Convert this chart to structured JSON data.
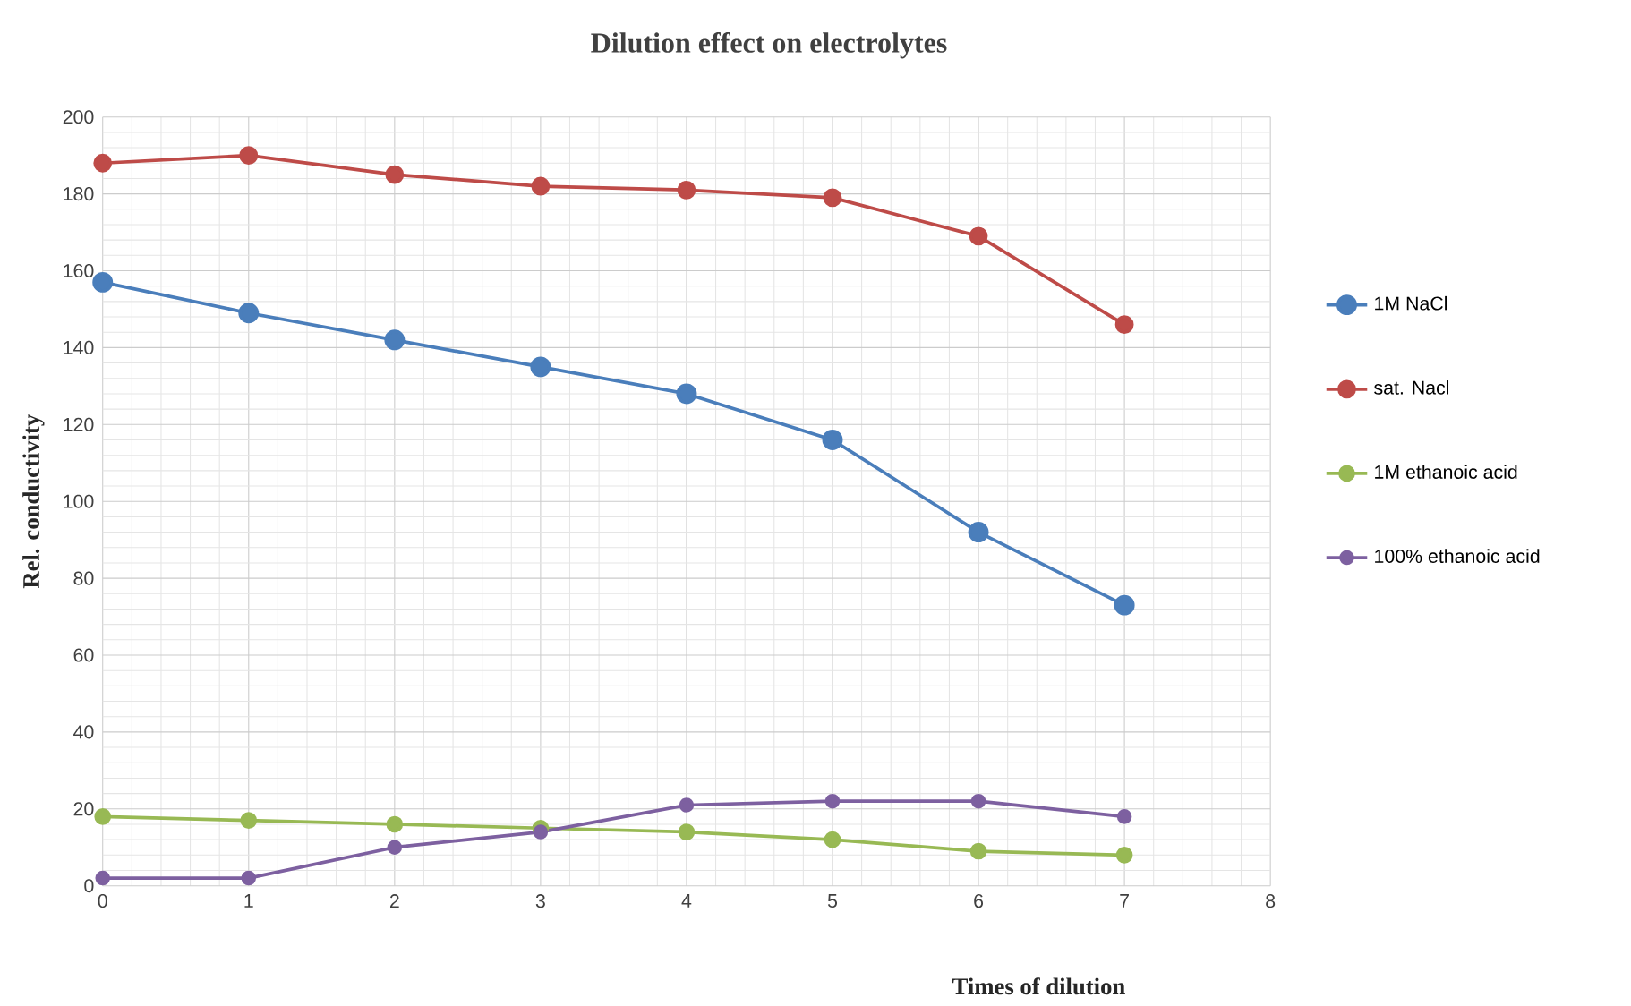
{
  "chart_data": {
    "type": "line",
    "title": "Dilution effect on electrolytes",
    "xlabel": "Times of dilution",
    "ylabel": "Rel. conductivity",
    "x": [
      0,
      1,
      2,
      3,
      4,
      5,
      6,
      7
    ],
    "series": [
      {
        "name": "1M NaCl",
        "color": "#4a7ebb",
        "values": [
          157,
          149,
          142,
          135,
          128,
          116,
          92,
          73
        ]
      },
      {
        "name": "sat. Nacl",
        "color": "#be4b48",
        "values": [
          188,
          190,
          185,
          182,
          181,
          179,
          169,
          146
        ]
      },
      {
        "name": "1M ethanoic acid",
        "color": "#98b954",
        "values": [
          18,
          17,
          16,
          15,
          14,
          12,
          9,
          8
        ]
      },
      {
        "name": "100% ethanoic acid",
        "color": "#7d60a0",
        "values": [
          2,
          2,
          10,
          14,
          21,
          22,
          22,
          18
        ]
      }
    ],
    "xlim": [
      0,
      8
    ],
    "xticks": [
      0,
      1,
      2,
      3,
      4,
      5,
      6,
      7,
      8
    ],
    "ylim": [
      0,
      200
    ],
    "yticks": [
      0,
      20,
      40,
      60,
      80,
      100,
      120,
      140,
      160,
      180,
      200
    ],
    "grid": true,
    "legend": "right",
    "marker": "circle",
    "line_style": "solid"
  }
}
